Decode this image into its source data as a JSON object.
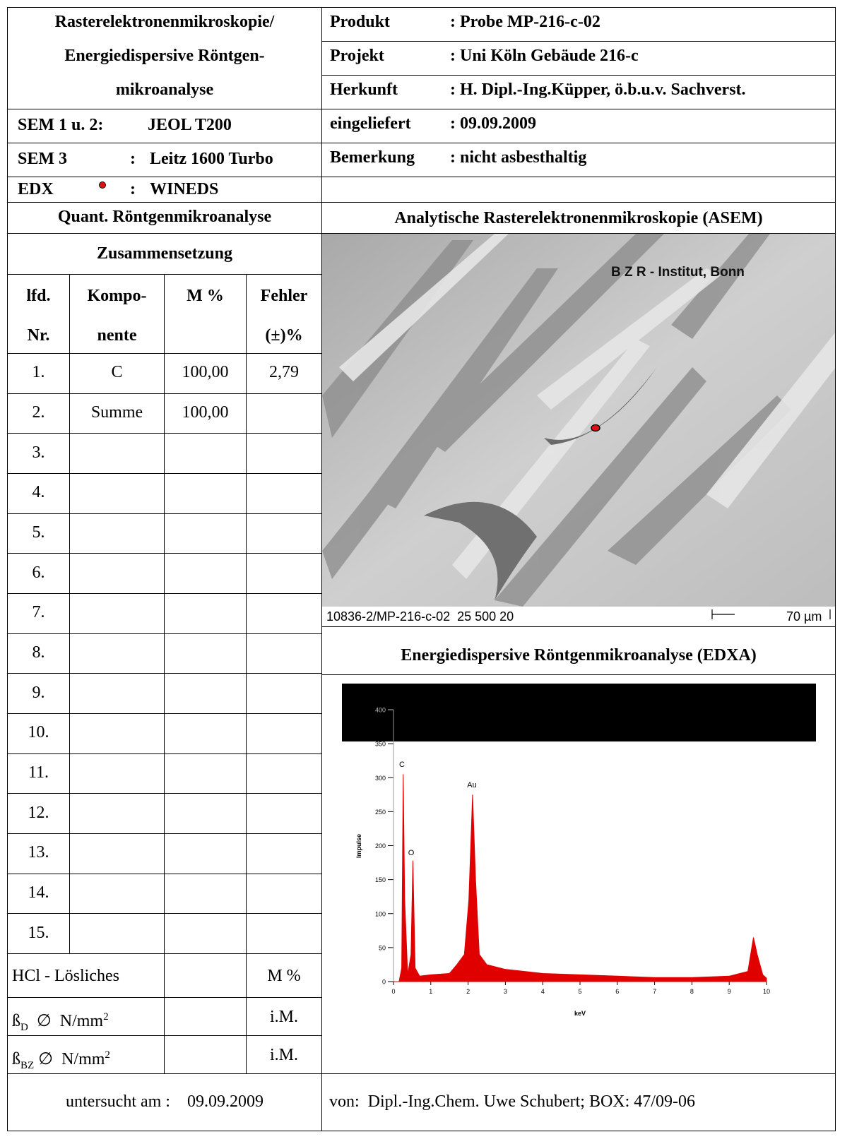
{
  "header": {
    "title_lines": [
      "Rasterelektronenmikroskopie/",
      "Energiedispersive Röntgen-",
      "mikroanalyse"
    ],
    "instruments": [
      {
        "label": "SEM  1 u. 2:",
        "value": "JEOL T200"
      },
      {
        "label": "SEM 3",
        "sep": ":",
        "value": "Leitz 1600 Turbo"
      },
      {
        "label": "EDX",
        "sep": ":",
        "value": "WINEDS"
      }
    ],
    "info": [
      {
        "label": "Produkt",
        "value": ": Probe  MP-216-c-02"
      },
      {
        "label": "Projekt",
        "value": ": Uni Köln Gebäude 216-c"
      },
      {
        "label": "Herkunft",
        "value": ": H. Dipl.-Ing.Küpper, ö.b.u.v. Sachverst."
      },
      {
        "label": "eingeliefert",
        "value": ": 09.09.2009"
      },
      {
        "label": "Bemerkung",
        "value": ": nicht asbesthaltig"
      }
    ]
  },
  "analysis": {
    "title": "Quant. Röntgenmikroanalyse",
    "subtitle": "Zusammensetzung",
    "columns": [
      {
        "line1": "lfd.",
        "line2": "Nr."
      },
      {
        "line1": "Kompo-",
        "line2": "nente"
      },
      {
        "line1": "M %"
      },
      {
        "line1": "Fehler",
        "line2": "(±)%"
      }
    ],
    "rows": [
      {
        "nr": "1.",
        "component": "C",
        "mass": "100,00",
        "error": "2,79"
      },
      {
        "nr": "2.",
        "component": "Summe",
        "mass": "100,00"
      },
      {
        "nr": "3."
      },
      {
        "nr": "4."
      },
      {
        "nr": "5."
      },
      {
        "nr": "6."
      },
      {
        "nr": "7."
      },
      {
        "nr": "8."
      },
      {
        "nr": "9."
      },
      {
        "nr": "10."
      },
      {
        "nr": "11."
      },
      {
        "nr": "12."
      },
      {
        "nr": "13."
      },
      {
        "nr": "14."
      },
      {
        "nr": "15."
      }
    ],
    "extra_rows": [
      {
        "label": "HCl - Lösliches",
        "unit": "M %"
      },
      {
        "symbol": "ß",
        "sub": "D",
        "text": "  ∅  N/mm",
        "sup": "2",
        "unit": "i.M."
      },
      {
        "symbol": "ß",
        "sub": "BZ",
        "text": " ∅  N/mm",
        "sup": "2",
        "unit": "i.M."
      }
    ]
  },
  "asem": {
    "title": "Analytische Rasterelektronenmikroskopie (ASEM)",
    "watermark": "B Z R - Institut, Bonn",
    "caption": "10836-2/MP-216-c-02  25 500 20",
    "scale": "70 µm"
  },
  "edxa": {
    "title": "Energiedispersive Röntgenmikroanalyse (EDXA)",
    "chart_data": {
      "type": "area",
      "x": [
        0,
        0.15,
        0.22,
        0.26,
        0.3,
        0.38,
        0.47,
        0.52,
        0.58,
        0.7,
        1,
        1.5,
        1.7,
        1.9,
        2.02,
        2.12,
        2.2,
        2.3,
        2.5,
        3,
        4,
        5,
        6,
        7,
        8,
        9,
        9.5,
        9.65,
        9.75,
        9.9,
        10
      ],
      "values": [
        0,
        0,
        20,
        305,
        120,
        10,
        40,
        178,
        20,
        8,
        10,
        12,
        25,
        40,
        120,
        275,
        150,
        40,
        25,
        18,
        12,
        10,
        8,
        6,
        6,
        8,
        15,
        65,
        40,
        10,
        5
      ],
      "color": "#e00000",
      "xlim": [
        0,
        10
      ],
      "ylim": [
        0,
        400
      ],
      "xticks": [
        0,
        1,
        2,
        3,
        4,
        5,
        6,
        7,
        8,
        9,
        10
      ],
      "yticks": [
        0,
        50,
        100,
        150,
        200,
        250,
        300,
        350,
        400
      ],
      "x_label": "keV",
      "y_label": "Impulse",
      "peak_labels": [
        "C",
        "O",
        "Au"
      ]
    }
  },
  "footer": {
    "left": "untersucht am :    09.09.2009",
    "right": "von:  Dipl.-Ing.Chem. Uwe Schubert; BOX: 47/09-06"
  }
}
